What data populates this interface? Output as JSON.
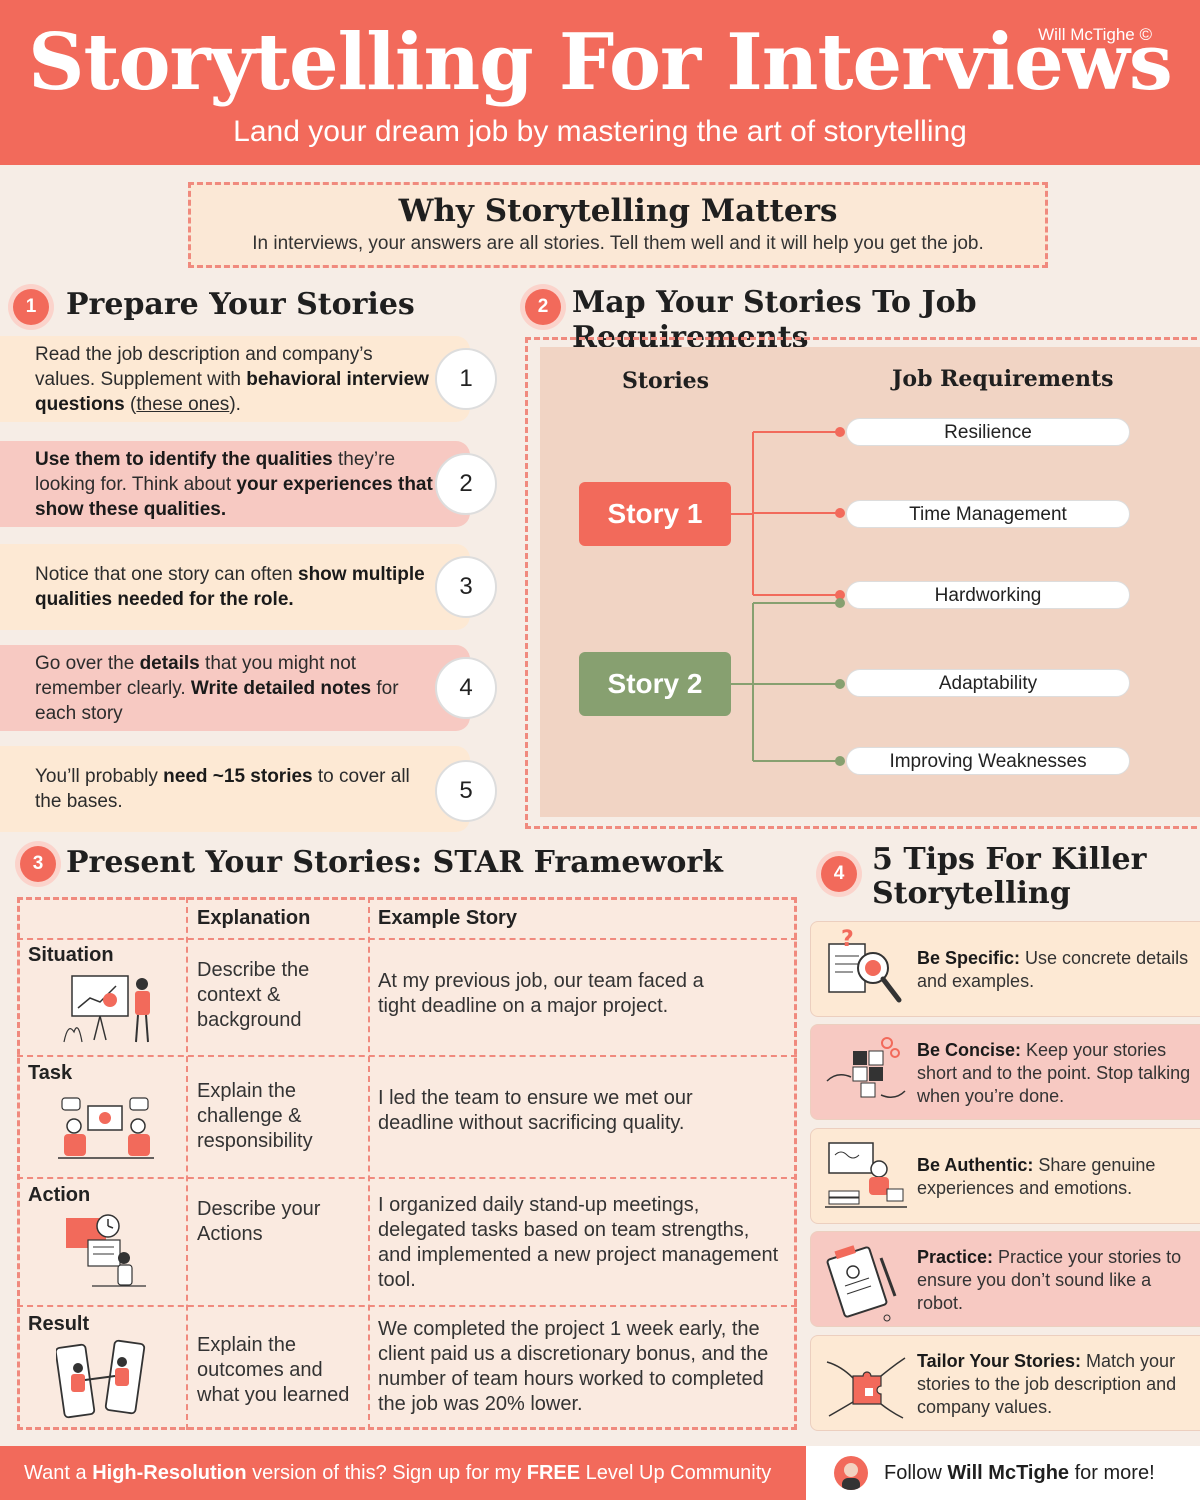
{
  "header": {
    "title": "Storytelling For Interviews",
    "credit": "Will McTighe ©",
    "subtitle": "Land your dream job by mastering the art of storytelling"
  },
  "why": {
    "title": "Why Storytelling Matters",
    "text": "In interviews, your answers are all stories. Tell them well and it will help you get the job."
  },
  "prepare": {
    "num": "1",
    "title": "Prepare Your Stories",
    "items": [
      {
        "num": "1",
        "t1": "Read the job description and company’s values. Supplement with ",
        "b1": "behavioral interview questions",
        "t2": " (",
        "u1": "these ones",
        "t3": ")."
      },
      {
        "num": "2",
        "b1": "Use them to identify the qualities",
        "t1": " they’re looking for. Think about ",
        "b2": "your experiences that show these qualities."
      },
      {
        "num": "3",
        "t1": "Notice that one story can often ",
        "b1": "show multiple qualities needed for the role."
      },
      {
        "num": "4",
        "t1": "Go over the ",
        "b1": "details",
        "t2": " that you might not remember clearly. ",
        "b2": "Write detailed notes",
        "t3": " for each story"
      },
      {
        "num": "5",
        "t1": "You’ll probably ",
        "b1": "need ~15 stories",
        "t2": " to cover all the bases."
      }
    ]
  },
  "map": {
    "num": "2",
    "title": "Map Your Stories To Job Requirements",
    "col_stories": "Stories",
    "col_requirements": "Job Requirements",
    "stories": [
      "Story 1",
      "Story 2"
    ],
    "requirements": [
      "Resilience",
      "Time Management",
      "Hardworking",
      "Adaptability",
      "Improving Weaknesses"
    ],
    "colors": {
      "story1": "#f26a5b",
      "story2": "#87a070"
    }
  },
  "star": {
    "num": "3",
    "title": "Present Your Stories: STAR Framework",
    "col_explanation": "Explanation",
    "col_example": "Example Story",
    "rows": [
      {
        "label": "Situation",
        "explanation": "Describe the context & background",
        "example": "At my previous job, our team faced a tight deadline on a major project."
      },
      {
        "label": "Task",
        "explanation": "Explain the challenge & responsibility",
        "example": "I led the team to ensure we met our deadline without sacrificing quality."
      },
      {
        "label": "Action",
        "explanation": "Describe your Actions",
        "example": "I organized daily stand-up meetings, delegated tasks based on team strengths, and implemented a new project management tool."
      },
      {
        "label": "Result",
        "explanation": "Explain the outcomes and what you learned",
        "example": "We completed the project 1 week early, the client paid us a discretionary bonus, and the number of team hours worked to completed the job was 20% lower."
      }
    ]
  },
  "tips": {
    "num": "4",
    "title_line1": "5 Tips For Killer",
    "title_line2": "Storytelling",
    "items": [
      {
        "label": "Be Specific:",
        "text": " Use concrete details and examples.",
        "icon": "magnifier-icon"
      },
      {
        "label": "Be Concise:",
        "text": " Keep your stories short and to the point. Stop talking when you’re done.",
        "icon": "puzzle-hands-icon"
      },
      {
        "label": "Be Authentic:",
        "text": " Share genuine experiences and emotions.",
        "icon": "desk-worker-icon"
      },
      {
        "label": "Practice:",
        "text": " Practice your stories to ensure you don’t sound like a robot.",
        "icon": "clipboard-icon"
      },
      {
        "label": "Tailor Your Stories:",
        "text": " Match your stories to the job description and company values.",
        "icon": "puzzle-fit-icon"
      }
    ]
  },
  "footer": {
    "left_t1": "Want a ",
    "left_b1": "High-Resolution",
    "left_t2": " version of this? Sign up for my ",
    "left_b2": "FREE",
    "left_t3": " Level Up Community",
    "right_t1": "Follow ",
    "right_b1": "Will McTighe",
    "right_t2": " for more!"
  }
}
